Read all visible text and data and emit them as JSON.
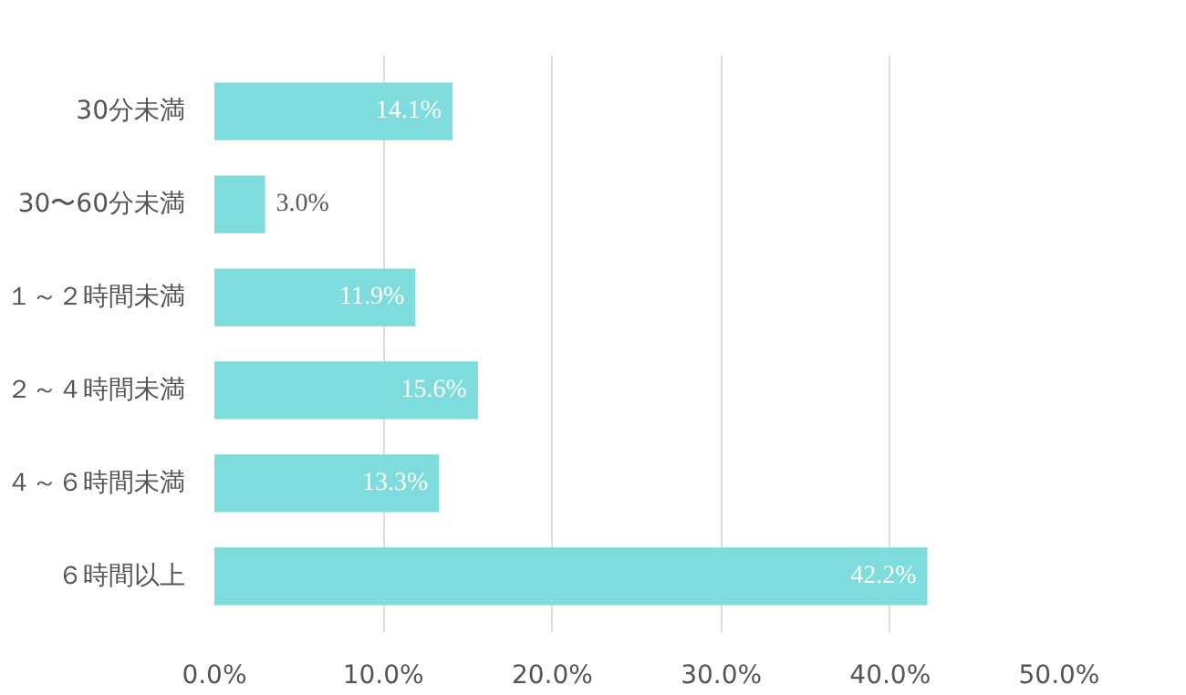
{
  "chart_data": {
    "type": "bar",
    "orientation": "horizontal",
    "categories": [
      "30分未満",
      "30〜60分未満",
      "１～２時間未満",
      "２～４時間未満",
      "４～６時間未満",
      "６時間以上"
    ],
    "values": [
      14.1,
      3.0,
      11.9,
      15.6,
      13.3,
      42.2
    ],
    "value_labels": [
      "14.1%",
      "3.0%",
      "11.9%",
      "15.6%",
      "13.3%",
      "42.2%"
    ],
    "color": "#7edcdc",
    "xlim": [
      0,
      50
    ],
    "xticks": [
      {
        "value": 0,
        "label": "0.0%"
      },
      {
        "value": 10,
        "label": "10.0%"
      },
      {
        "value": 20,
        "label": "20.0%"
      },
      {
        "value": 30,
        "label": "30.0%"
      },
      {
        "value": 40,
        "label": "40.0%"
      },
      {
        "value": 50,
        "label": "50.0%"
      }
    ],
    "grid": "x"
  }
}
